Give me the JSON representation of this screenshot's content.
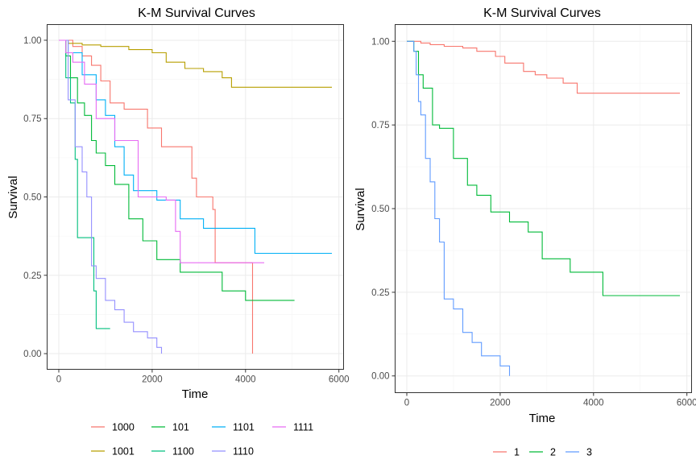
{
  "chart_data": [
    {
      "type": "line",
      "step": true,
      "title": "K-M Survival Curves",
      "xlabel": "Time",
      "ylabel": "Survival",
      "xlim": [
        -250,
        6100
      ],
      "ylim": [
        -0.05,
        1.05
      ],
      "xticks": [
        0,
        2000,
        4000,
        6000
      ],
      "xtick_labels": [
        "0",
        "2000",
        "4000",
        "6000"
      ],
      "yticks": [
        0,
        0.25,
        0.5,
        0.75,
        1
      ],
      "ytick_labels": [
        "0.00",
        "0.25",
        "0.50",
        "0.75",
        "1.00"
      ],
      "legend_rows": [
        [
          "1000",
          "101",
          "1101",
          "1111"
        ],
        [
          "1001",
          "1100",
          "1110"
        ]
      ],
      "series": [
        {
          "name": "1000",
          "color": "#F8766D",
          "x": [
            0,
            300,
            500,
            700,
            900,
            1100,
            1400,
            1900,
            2200,
            2850,
            2950,
            3300,
            3350,
            4100,
            4150
          ],
          "y": [
            1,
            0.98,
            0.95,
            0.92,
            0.87,
            0.8,
            0.78,
            0.72,
            0.66,
            0.56,
            0.5,
            0.46,
            0.29,
            0.29,
            0.0
          ]
        },
        {
          "name": "1001",
          "color": "#B79F00",
          "x": [
            0,
            200,
            500,
            900,
            1500,
            2000,
            2300,
            2700,
            3100,
            3500,
            3700,
            5850
          ],
          "y": [
            1,
            0.99,
            0.985,
            0.98,
            0.97,
            0.96,
            0.93,
            0.91,
            0.9,
            0.88,
            0.85,
            0.85
          ]
        },
        {
          "name": "101",
          "color": "#00BA38",
          "x": [
            0,
            150,
            250,
            400,
            550,
            700,
            800,
            1000,
            1200,
            1500,
            1800,
            2100,
            2600,
            3500,
            4000,
            5050
          ],
          "y": [
            1,
            0.95,
            0.88,
            0.8,
            0.76,
            0.68,
            0.64,
            0.6,
            0.54,
            0.43,
            0.36,
            0.3,
            0.26,
            0.2,
            0.17,
            0.17
          ]
        },
        {
          "name": "1100",
          "color": "#00BF7D",
          "x": [
            0,
            150,
            250,
            350,
            400,
            700,
            750,
            800,
            1100
          ],
          "y": [
            1,
            0.88,
            0.8,
            0.62,
            0.37,
            0.37,
            0.2,
            0.08,
            0.08
          ]
        },
        {
          "name": "1101",
          "color": "#00B0F6",
          "x": [
            0,
            200,
            500,
            800,
            1000,
            1200,
            1400,
            1600,
            2100,
            2600,
            3100,
            4200,
            5850
          ],
          "y": [
            1,
            0.96,
            0.89,
            0.81,
            0.76,
            0.66,
            0.57,
            0.52,
            0.49,
            0.43,
            0.4,
            0.32,
            0.32
          ]
        },
        {
          "name": "1110",
          "color": "#9590FF",
          "x": [
            0,
            200,
            350,
            500,
            600,
            700,
            800,
            1000,
            1200,
            1400,
            1600,
            1900,
            2100,
            2200
          ],
          "y": [
            1,
            0.81,
            0.66,
            0.58,
            0.5,
            0.28,
            0.24,
            0.17,
            0.14,
            0.1,
            0.07,
            0.05,
            0.02,
            0.0
          ]
        },
        {
          "name": "1111",
          "color": "#E76BF3",
          "x": [
            0,
            150,
            300,
            550,
            800,
            1200,
            1700,
            2300,
            2500,
            2600,
            4400
          ],
          "y": [
            1,
            0.96,
            0.93,
            0.86,
            0.75,
            0.68,
            0.5,
            0.49,
            0.39,
            0.29,
            0.29
          ]
        }
      ]
    },
    {
      "type": "line",
      "step": true,
      "title": "K-M Survival Curves",
      "xlabel": "Time",
      "ylabel": "Survival",
      "xlim": [
        -250,
        6100
      ],
      "ylim": [
        -0.05,
        1.05
      ],
      "xticks": [
        0,
        2000,
        4000,
        6000
      ],
      "xtick_labels": [
        "0",
        "2000",
        "4000",
        "6000"
      ],
      "yticks": [
        0,
        0.25,
        0.5,
        0.75,
        1
      ],
      "ytick_labels": [
        "0.00",
        "0.25",
        "0.50",
        "0.75",
        "1.00"
      ],
      "legend_rows": [
        [
          "1",
          "2",
          "3"
        ]
      ],
      "series": [
        {
          "name": "1",
          "color": "#F8766D",
          "x": [
            0,
            300,
            500,
            800,
            1200,
            1500,
            1900,
            2100,
            2500,
            2750,
            3000,
            3350,
            3650,
            5850
          ],
          "y": [
            1,
            0.995,
            0.99,
            0.985,
            0.98,
            0.97,
            0.955,
            0.935,
            0.91,
            0.9,
            0.89,
            0.875,
            0.845,
            0.845
          ]
        },
        {
          "name": "2",
          "color": "#00BA38",
          "x": [
            0,
            150,
            250,
            350,
            550,
            700,
            1000,
            1300,
            1500,
            1800,
            2200,
            2600,
            2900,
            3500,
            4200,
            5850
          ],
          "y": [
            1,
            0.97,
            0.9,
            0.86,
            0.75,
            0.74,
            0.65,
            0.57,
            0.54,
            0.49,
            0.46,
            0.43,
            0.35,
            0.31,
            0.24,
            0.24
          ]
        },
        {
          "name": "3",
          "color": "#619CFF",
          "x": [
            0,
            150,
            200,
            250,
            300,
            400,
            500,
            600,
            700,
            800,
            1000,
            1200,
            1400,
            1600,
            2000,
            2200
          ],
          "y": [
            1,
            0.97,
            0.9,
            0.82,
            0.78,
            0.65,
            0.58,
            0.47,
            0.4,
            0.23,
            0.2,
            0.13,
            0.1,
            0.06,
            0.03,
            0.0
          ]
        }
      ]
    }
  ]
}
